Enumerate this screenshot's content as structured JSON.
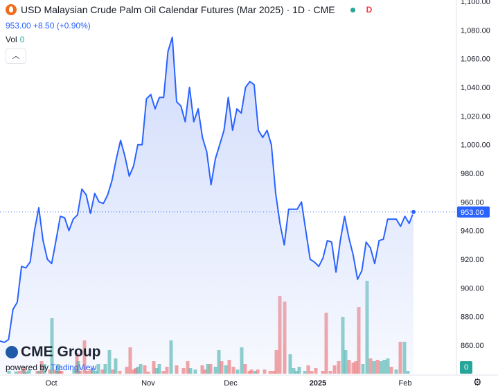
{
  "header": {
    "title": "USD Malaysian Crude Palm Oil Calendar Futures (Mar 2025) · 1D · CME",
    "badge": "D",
    "change": "953.00 +8.50 (+0.90%)",
    "vol_label": "Vol",
    "vol_value": "0",
    "collapse_icon": "chevron-up-icon"
  },
  "logo": {
    "brand": "CME Group",
    "powered_by": "powered by",
    "powered_name": "TradingView"
  },
  "colors": {
    "line": "#2962ff",
    "area_top": "#c9d6fb",
    "vol_up": "#26a69a",
    "vol_down": "#ef5350",
    "price_label_bg": "#2962ff"
  },
  "chart_data": {
    "type": "area",
    "yaxis_ticks": [
      "860.00",
      "880.00",
      "900.00",
      "920.00",
      "940.00",
      "960.00",
      "980.00",
      "1,000.00",
      "1,020.00",
      "1,040.00",
      "1,060.00",
      "1,080.00",
      "1,100.00"
    ],
    "ylim": [
      860,
      1100
    ],
    "xaxis_ticks": [
      "Oct",
      "Nov",
      "Dec",
      "2025",
      "Feb"
    ],
    "last_price": "953.00",
    "volume_axis_label": "0",
    "close": [
      863,
      862,
      864,
      885,
      890,
      915,
      914,
      918,
      940,
      956,
      933,
      920,
      917,
      933,
      950,
      949,
      940,
      948,
      951,
      969,
      965,
      952,
      966,
      960,
      959,
      965,
      975,
      990,
      1003,
      992,
      978,
      985,
      1000,
      1000,
      1032,
      1035,
      1025,
      1033,
      1033,
      1065,
      1075,
      1030,
      1027,
      1016,
      1040,
      1016,
      1025,
      1005,
      995,
      972,
      990,
      1000,
      1010,
      1033,
      1010,
      1025,
      1022,
      1040,
      1044,
      1042,
      1010,
      1005,
      1010,
      1000,
      966,
      945,
      930,
      955,
      955,
      955,
      960,
      940,
      920,
      918,
      915,
      921,
      933,
      932,
      911,
      933,
      950,
      935,
      923,
      906,
      912,
      932,
      928,
      917,
      933,
      934,
      948,
      948,
      948,
      943,
      950,
      945,
      953
    ]
  }
}
